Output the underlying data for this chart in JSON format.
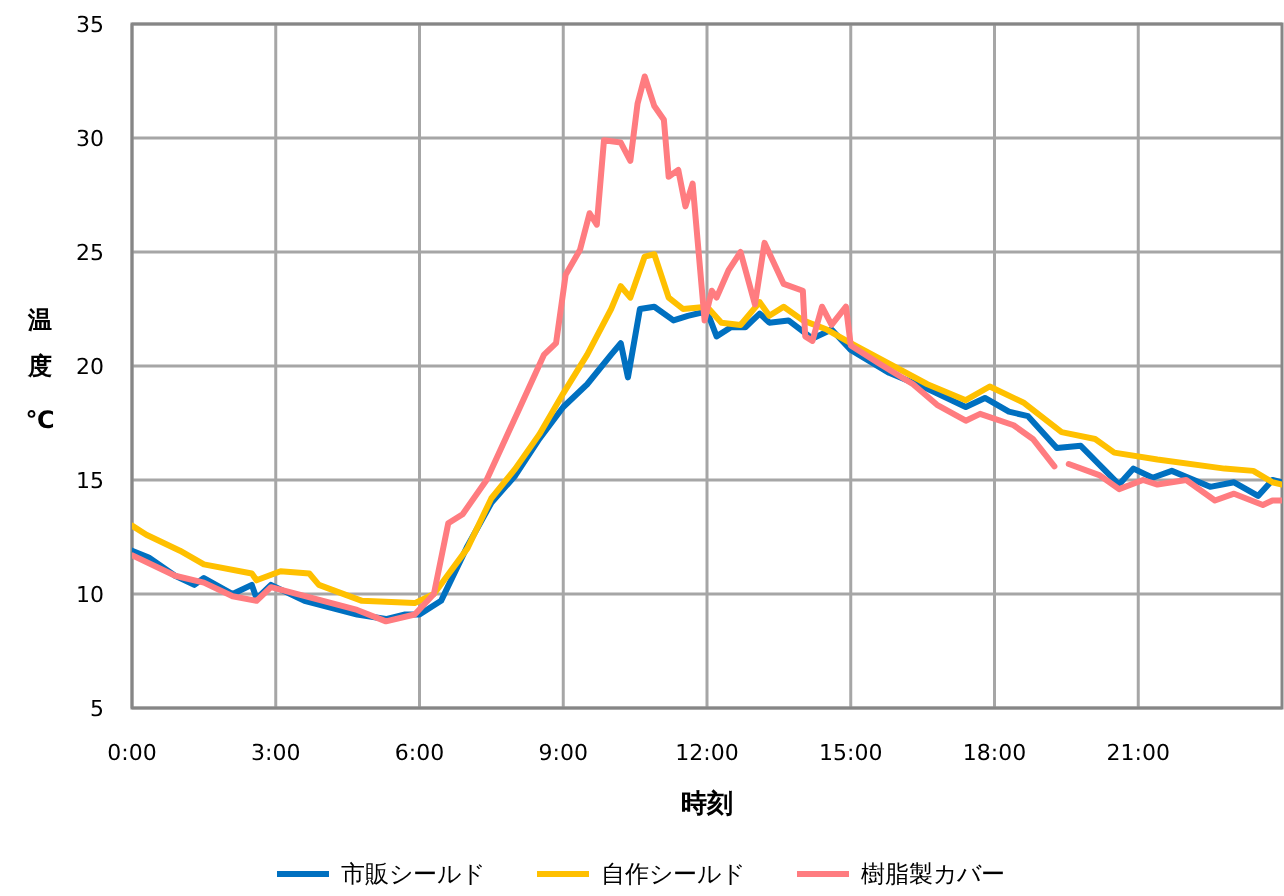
{
  "chart_data": {
    "type": "line",
    "xlabel": "時刻",
    "ylabel": "温度℃",
    "xlim": [
      0,
      24
    ],
    "ylim": [
      5,
      35
    ],
    "xticks": [
      {
        "value": 0,
        "label": "0:00"
      },
      {
        "value": 3,
        "label": "3:00"
      },
      {
        "value": 6,
        "label": "6:00"
      },
      {
        "value": 9,
        "label": "9:00"
      },
      {
        "value": 12,
        "label": "12:00"
      },
      {
        "value": 15,
        "label": "15:00"
      },
      {
        "value": 18,
        "label": "18:00"
      },
      {
        "value": 21,
        "label": "21:00"
      }
    ],
    "yticks": [
      5,
      10,
      15,
      20,
      25,
      30,
      35
    ],
    "grid": true,
    "legend": "bottom",
    "marker": "none",
    "line_style": "solid",
    "series": [
      {
        "name": "市販シールド",
        "color": "#0070c0",
        "x": [
          0,
          0.35,
          0.9,
          1.3,
          1.5,
          2.1,
          2.5,
          2.6,
          2.9,
          3.6,
          4.7,
          5.3,
          5.7,
          6.0,
          6.45,
          7.0,
          7.5,
          8.0,
          8.5,
          9.0,
          9.5,
          10.0,
          10.2,
          10.35,
          10.6,
          10.9,
          11.3,
          11.6,
          12.0,
          12.2,
          12.5,
          12.8,
          13.1,
          13.3,
          13.7,
          14.2,
          14.6,
          15.0,
          15.8,
          16.6,
          17.4,
          17.8,
          18.3,
          18.7,
          19.3,
          19.8,
          20.6,
          20.9,
          21.3,
          21.7,
          22.5,
          23.0,
          23.5,
          23.8,
          24
        ],
        "values": [
          11.9,
          11.6,
          10.8,
          10.4,
          10.7,
          10.0,
          10.4,
          9.8,
          10.4,
          9.7,
          9.1,
          8.9,
          9.1,
          9.1,
          9.7,
          12.1,
          14.0,
          15.2,
          16.8,
          18.2,
          19.2,
          20.5,
          21.0,
          19.5,
          22.5,
          22.6,
          22.0,
          22.2,
          22.4,
          21.3,
          21.7,
          21.7,
          22.3,
          21.9,
          22.0,
          21.2,
          21.6,
          20.7,
          19.7,
          19.0,
          18.2,
          18.6,
          18.0,
          17.8,
          16.4,
          16.5,
          14.8,
          15.5,
          15.1,
          15.4,
          14.7,
          14.9,
          14.3,
          15.0,
          14.9
        ]
      },
      {
        "name": "自作シールド",
        "color": "#ffc000",
        "x": [
          0,
          0.3,
          1.0,
          1.5,
          2.5,
          2.6,
          3.1,
          3.7,
          3.9,
          4.8,
          5.9,
          6.3,
          7.0,
          7.5,
          8.0,
          8.5,
          9.0,
          9.5,
          10.0,
          10.2,
          10.4,
          10.7,
          10.9,
          11.2,
          11.5,
          12.0,
          12.3,
          12.7,
          13.1,
          13.3,
          13.6,
          14.0,
          14.5,
          15.0,
          15.8,
          16.6,
          17.4,
          17.9,
          18.6,
          19.4,
          20.1,
          20.5,
          21.4,
          22.8,
          23.4,
          23.8,
          24
        ],
        "values": [
          13.0,
          12.6,
          11.9,
          11.3,
          10.9,
          10.6,
          11.0,
          10.9,
          10.4,
          9.7,
          9.6,
          10.0,
          12.0,
          14.2,
          15.5,
          17.0,
          18.8,
          20.5,
          22.5,
          23.5,
          23.0,
          24.8,
          24.9,
          23.0,
          22.5,
          22.6,
          21.9,
          21.8,
          22.8,
          22.2,
          22.6,
          22.0,
          21.6,
          21.0,
          20.1,
          19.2,
          18.5,
          19.1,
          18.4,
          17.1,
          16.8,
          16.2,
          15.9,
          15.5,
          15.4,
          14.9,
          14.8
        ]
      },
      {
        "name": "樹脂製カバー",
        "color": "#ff7c80",
        "x": [
          0,
          0.9,
          1.5,
          2.1,
          2.6,
          2.9,
          4.7,
          5.3,
          5.9,
          6.3,
          6.6,
          6.9,
          7.4,
          8.1,
          8.6,
          8.85,
          9.05,
          9.35,
          9.55,
          9.7,
          9.85,
          10.2,
          10.4,
          10.55,
          10.7,
          10.9,
          11.1,
          11.2,
          11.4,
          11.55,
          11.7,
          11.95,
          12.1,
          12.2,
          12.45,
          12.7,
          13.0,
          13.2,
          13.6,
          14.0,
          14.05,
          14.2,
          14.4,
          14.6,
          14.9,
          15.0,
          15.6,
          16.3,
          16.8,
          17.4,
          17.7,
          18.4,
          18.8,
          19.25,
          19.4,
          19.55,
          20.2,
          20.6,
          21.1,
          21.4,
          22.0,
          22.6,
          23.0,
          23.6,
          23.8,
          24
        ],
        "values": [
          11.7,
          10.8,
          10.5,
          9.9,
          9.7,
          10.3,
          9.3,
          8.8,
          9.1,
          10.0,
          13.1,
          13.5,
          15.0,
          18.2,
          20.5,
          21.0,
          24.0,
          25.1,
          26.7,
          26.2,
          29.9,
          29.8,
          29.0,
          31.5,
          32.7,
          31.4,
          30.8,
          28.3,
          28.6,
          27.0,
          28.0,
          22.0,
          23.3,
          23.0,
          24.2,
          25.0,
          22.7,
          25.4,
          23.6,
          23.3,
          21.3,
          21.1,
          22.6,
          21.8,
          22.6,
          20.9,
          20.1,
          19.2,
          18.3,
          17.6,
          17.9,
          17.4,
          16.8,
          15.6,
          null,
          15.7,
          15.2,
          14.6,
          15.0,
          14.8,
          15.0,
          14.1,
          14.4,
          13.9,
          14.1,
          14.1
        ]
      }
    ]
  }
}
